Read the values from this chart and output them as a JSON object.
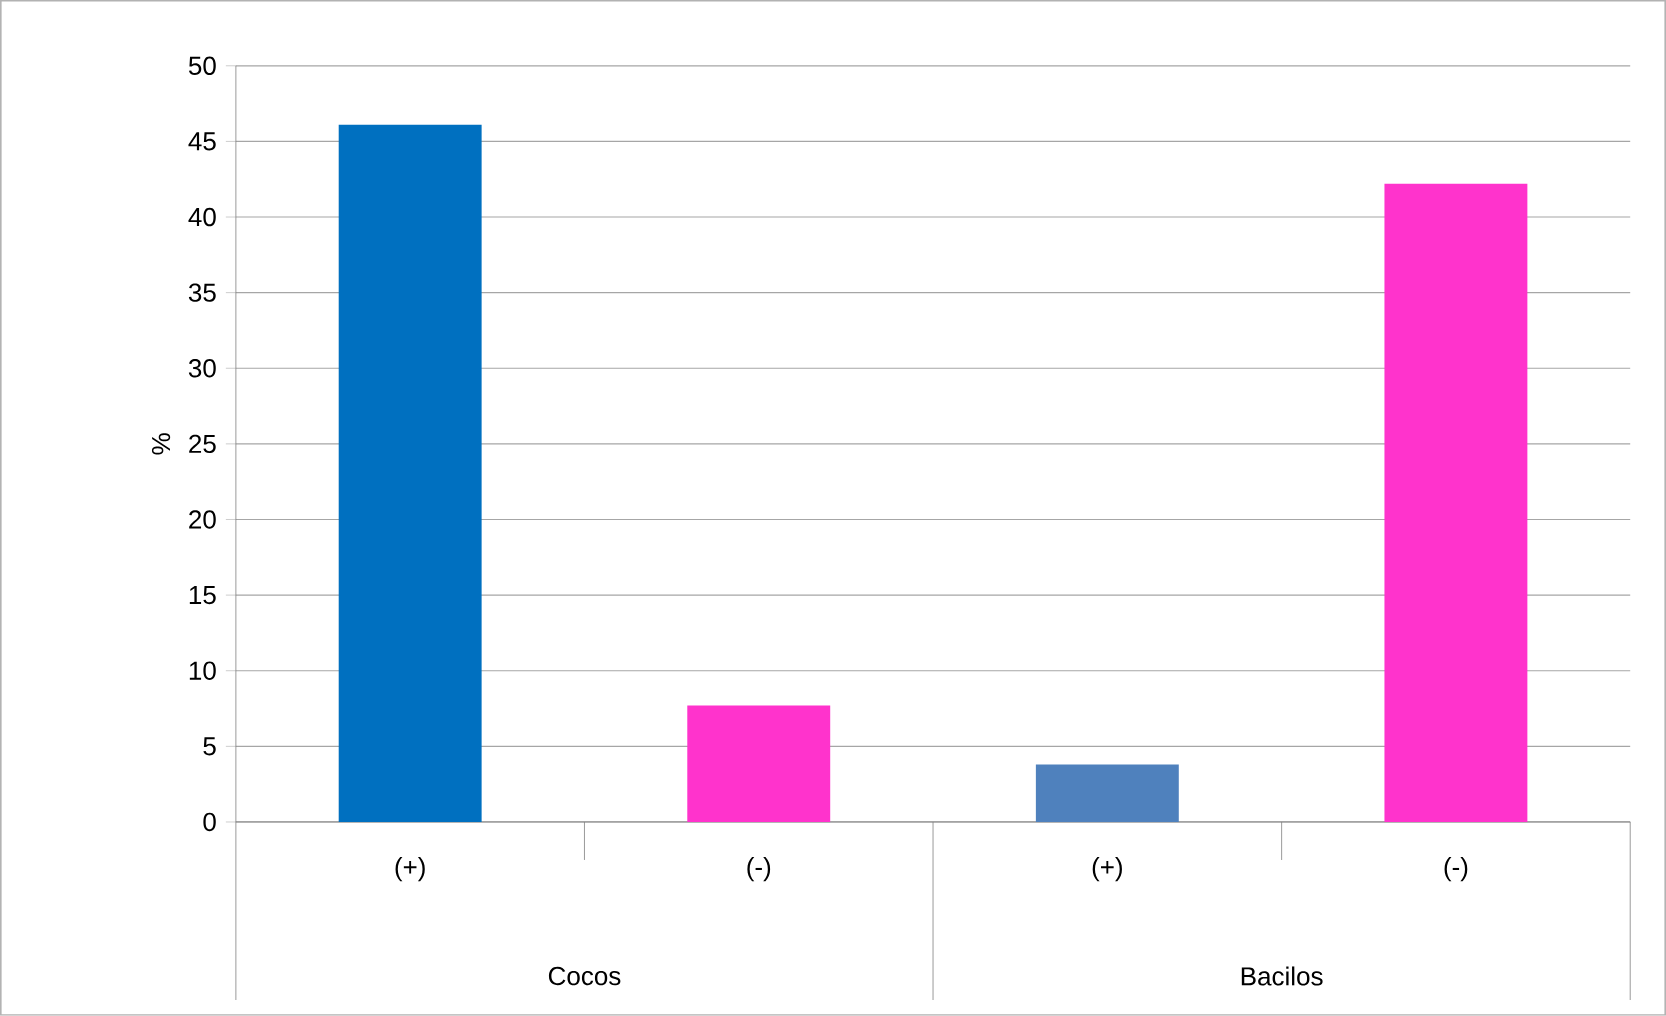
{
  "chart_data": {
    "type": "bar",
    "categories": [
      "(+)",
      "(-)",
      "(+)",
      "(-)"
    ],
    "values": [
      46.1,
      7.7,
      3.8,
      42.2
    ],
    "colors": [
      "#0070c0",
      "#ff33cc",
      "#4f81bd",
      "#ff33cc"
    ],
    "ylabel": "%",
    "ylim": [
      0,
      50
    ],
    "yticks": [
      0,
      5,
      10,
      15,
      20,
      25,
      30,
      35,
      40,
      45,
      50
    ],
    "grid": "y",
    "annotations": [
      "Cocos",
      "Bacilos"
    ]
  }
}
